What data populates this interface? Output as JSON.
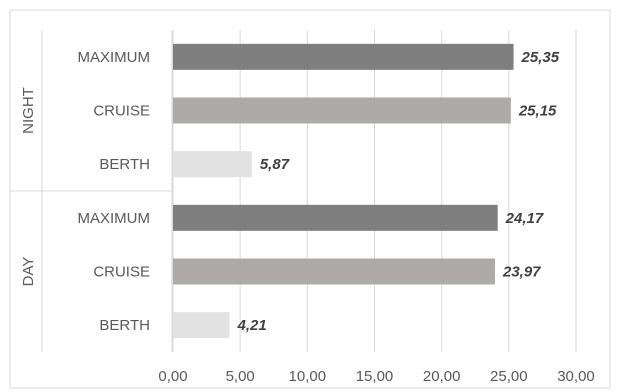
{
  "chart_data": {
    "type": "bar",
    "orientation": "horizontal",
    "title": "",
    "xlabel": "",
    "ylabel": "",
    "xlim": [
      0,
      30
    ],
    "x_ticks": [
      "0,00",
      "5,00",
      "10,00",
      "15,00",
      "20,00",
      "25,00",
      "30,00"
    ],
    "grid": "vertical",
    "legend": "none",
    "groups": [
      {
        "name": "NIGHT",
        "bars": [
          {
            "category": "MAXIMUM",
            "value": 25.35,
            "label": "25,35",
            "color": "#7f7f7f"
          },
          {
            "category": "CRUISE",
            "value": 25.15,
            "label": "25,15",
            "color": "#aeaaaa"
          },
          {
            "category": "BERTH",
            "value": 5.87,
            "label": "5,87",
            "color": "#e2e2e2"
          }
        ]
      },
      {
        "name": "DAY",
        "bars": [
          {
            "category": "MAXIMUM",
            "value": 24.17,
            "label": "24,17",
            "color": "#7f7f7f"
          },
          {
            "category": "CRUISE",
            "value": 23.97,
            "label": "23,97",
            "color": "#aeaaaa"
          },
          {
            "category": "BERTH",
            "value": 4.21,
            "label": "4,21",
            "color": "#e2e2e2"
          }
        ]
      }
    ]
  }
}
